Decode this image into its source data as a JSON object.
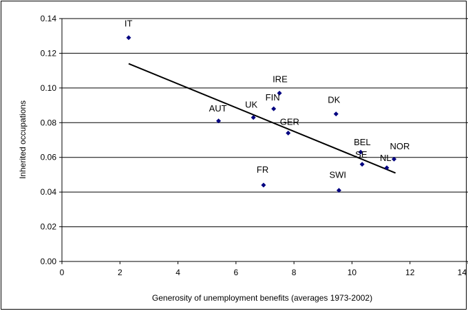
{
  "chart_data": {
    "type": "scatter",
    "title": "",
    "xlabel": "Generosity of unemployment benefits (averages 1973-2002)",
    "ylabel": "Inherited occupations",
    "xlim": [
      0,
      14
    ],
    "ylim": [
      0,
      0.14
    ],
    "x_ticks": [
      "0",
      "2",
      "4",
      "6",
      "8",
      "10",
      "12",
      "14"
    ],
    "y_ticks": [
      "0.00",
      "0.02",
      "0.04",
      "0.06",
      "0.08",
      "0.10",
      "0.12",
      "0.14"
    ],
    "grid": "horizontal",
    "marker_color": "#000080",
    "points": [
      {
        "label": "IT",
        "x": 2.3,
        "y": 0.129
      },
      {
        "label": "AUT",
        "x": 5.4,
        "y": 0.081
      },
      {
        "label": "UK",
        "x": 6.6,
        "y": 0.083
      },
      {
        "label": "FR",
        "x": 6.95,
        "y": 0.044
      },
      {
        "label": "FIN",
        "x": 7.3,
        "y": 0.088
      },
      {
        "label": "IRE",
        "x": 7.5,
        "y": 0.097
      },
      {
        "label": "GER",
        "x": 7.8,
        "y": 0.074
      },
      {
        "label": "DK",
        "x": 9.45,
        "y": 0.085
      },
      {
        "label": "SWI",
        "x": 9.55,
        "y": 0.041
      },
      {
        "label": "BEL",
        "x": 10.3,
        "y": 0.063
      },
      {
        "label": "SE",
        "x": 10.35,
        "y": 0.056
      },
      {
        "label": "NL",
        "x": 11.2,
        "y": 0.054
      },
      {
        "label": "NOR",
        "x": 11.45,
        "y": 0.059
      }
    ],
    "trendline": {
      "x": [
        2.3,
        11.5
      ],
      "y": [
        0.114,
        0.051
      ]
    }
  }
}
